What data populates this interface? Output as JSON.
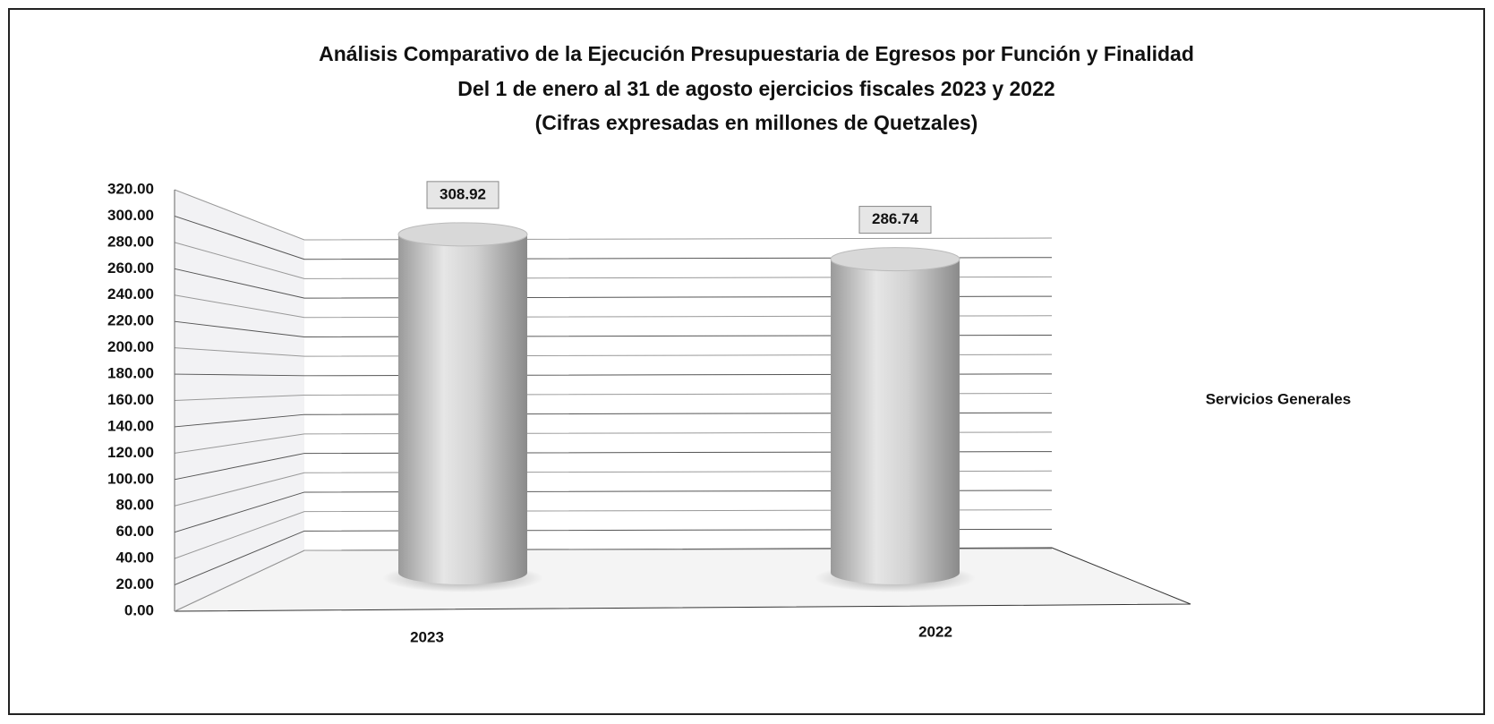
{
  "chart_data": {
    "type": "bar",
    "title": "Análisis Comparativo de la Ejecución Presupuestaria de Egresos por Función y Finalidad",
    "subtitle": "Del 1 de enero al 31 de agosto ejercicios fiscales 2023 y 2022",
    "note": "(Cifras expresadas en millones de Quetzales)",
    "categories": [
      "2023",
      "2022"
    ],
    "series": [
      {
        "name": "Servicios Generales",
        "color": "#c8c8c8",
        "values": [
          308.92,
          286.74
        ]
      }
    ],
    "ylim": [
      0,
      320
    ],
    "yticks": [
      {
        "value": 0,
        "label": "0.00"
      },
      {
        "value": 20,
        "label": "20.00"
      },
      {
        "value": 40,
        "label": "40.00"
      },
      {
        "value": 60,
        "label": "60.00"
      },
      {
        "value": 80,
        "label": "80.00"
      },
      {
        "value": 100,
        "label": "100.00"
      },
      {
        "value": 120,
        "label": "120.00"
      },
      {
        "value": 140,
        "label": "140.00"
      },
      {
        "value": 160,
        "label": "160.00"
      },
      {
        "value": 180,
        "label": "180.00"
      },
      {
        "value": 200,
        "label": "200.00"
      },
      {
        "value": 220,
        "label": "220.00"
      },
      {
        "value": 240,
        "label": "240.00"
      },
      {
        "value": 260,
        "label": "260.00"
      },
      {
        "value": 280,
        "label": "280.00"
      },
      {
        "value": 300,
        "label": "300.00"
      },
      {
        "value": 320,
        "label": "320.00"
      }
    ],
    "grid": true
  }
}
